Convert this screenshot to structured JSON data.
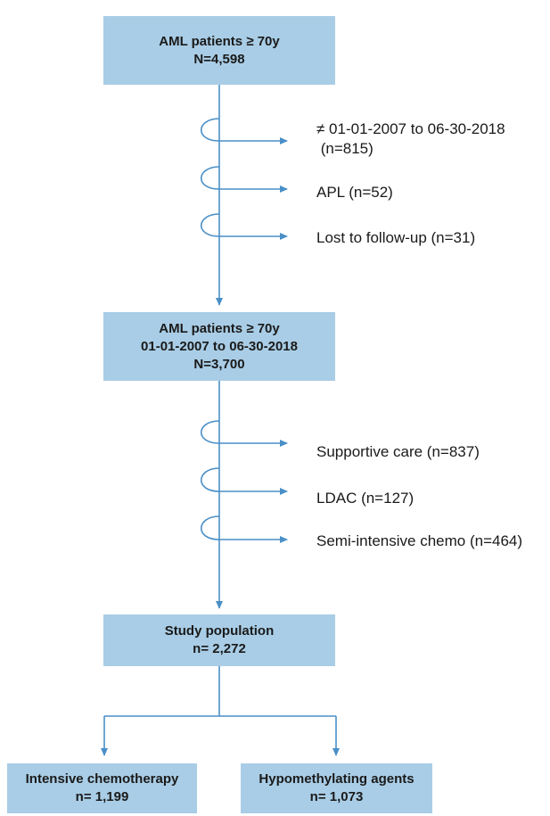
{
  "boxes": {
    "start": {
      "line1": "AML patients ≥ 70y",
      "line2": "N=4,598"
    },
    "mid": {
      "line1": "AML patients ≥ 70y",
      "line2": "01-01-2007 to 06-30-2018",
      "line3": "N=3,700"
    },
    "study": {
      "line1": "Study population",
      "line2": "n= 2,272"
    },
    "intensive": {
      "line1": "Intensive chemotherapy",
      "line2": "n= 1,199"
    },
    "hma": {
      "line1": "Hypomethylating agents",
      "line2": "n= 1,073"
    }
  },
  "exclusions_first": [
    {
      "line1": "≠ 01-01-2007 to 06-30-2018",
      "line2": " (n=815)"
    },
    {
      "line1": "APL (n=52)"
    },
    {
      "line1": "Lost to follow-up (n=31)"
    }
  ],
  "exclusions_second": [
    {
      "line1": "Supportive care (n=837)"
    },
    {
      "line1": "LDAC (n=127)"
    },
    {
      "line1": "Semi-intensive chemo (n=464)"
    }
  ],
  "colors": {
    "box_fill": "#a9cde6",
    "arrow": "#4a8fc7"
  }
}
